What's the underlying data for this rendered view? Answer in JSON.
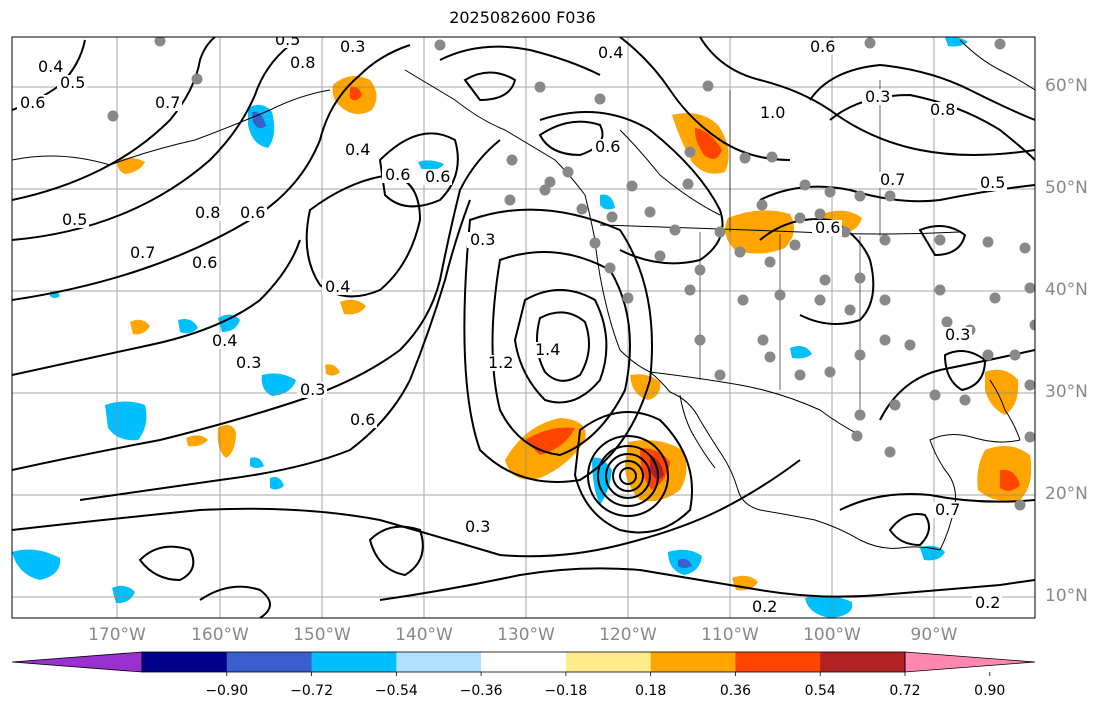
{
  "title": "2025082600 F036",
  "colors": {
    "coastline": "#000000",
    "contour": "#000000",
    "gridline": "#888888",
    "station": "#888888",
    "land_fill": "#ffffff"
  },
  "map": {
    "lat_labels": [
      "60°N",
      "50°N",
      "40°N",
      "30°N",
      "20°N",
      "10°N"
    ],
    "lon_labels": [
      "170°W",
      "160°W",
      "150°W",
      "140°W",
      "130°W",
      "120°W",
      "110°W",
      "100°W",
      "90°W"
    ],
    "contour_labels": [
      "0.4",
      "0.5",
      "0.6",
      "0.7",
      "0.8",
      "0.3",
      "0.4",
      "0.5",
      "0.6",
      "0.6",
      "0.4",
      "0.6",
      "0.3",
      "0.6",
      "1.0",
      "0.3",
      "0.8",
      "0.7",
      "0.5",
      "0.6",
      "0.8",
      "0.6",
      "0.5",
      "0.7",
      "0.6",
      "0.4",
      "0.4",
      "0.3",
      "0.3",
      "0.6",
      "1.2",
      "1.4",
      "0.3",
      "0.2",
      "0.2",
      "0.7",
      "0.3"
    ]
  },
  "colorbar": {
    "ticks": [
      "−0.90",
      "−0.72",
      "−0.54",
      "−0.36",
      "−0.18",
      "0.18",
      "0.36",
      "0.54",
      "0.72",
      "0.90"
    ],
    "colors": [
      "#9b30d0",
      "#00008b",
      "#3a5fcd",
      "#00bfff",
      "#b0e2ff",
      "#ffffff",
      "#ffec8b",
      "#ffa500",
      "#ff4500",
      "#b22222",
      "#ff88b0"
    ]
  }
}
